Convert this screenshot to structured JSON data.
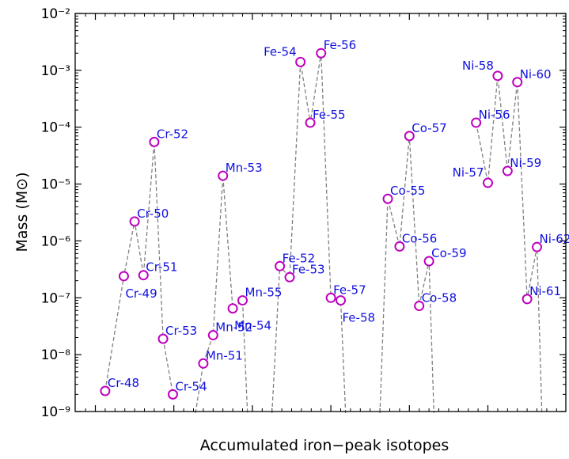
{
  "chart_data": {
    "type": "scatter",
    "title": "",
    "xlabel": "Accumulated iron−peak isotopes",
    "ylabel": "Mass (M⊙)",
    "yscale": "log",
    "ylim": [
      1e-09,
      0.01
    ],
    "y_ticks": [
      {
        "value": 1e-09,
        "label": "10⁻⁹"
      },
      {
        "value": 1e-08,
        "label": "10⁻⁸"
      },
      {
        "value": 1e-07,
        "label": "10⁻⁷"
      },
      {
        "value": 1e-06,
        "label": "10⁻⁶"
      },
      {
        "value": 1e-05,
        "label": "10⁻⁵"
      },
      {
        "value": 0.0001,
        "label": "10⁻⁴"
      },
      {
        "value": 0.001,
        "label": "10⁻³"
      },
      {
        "value": 0.01,
        "label": "10⁻²"
      }
    ],
    "x_tick_indices": [
      0,
      8,
      16,
      24,
      32,
      40
    ],
    "grid": false,
    "marker": {
      "shape": "open-circle",
      "edge_color": "#bf00bf"
    },
    "line": {
      "style": "dashed",
      "color": "#808080"
    },
    "label_color": "#1010e0",
    "groups": [
      {
        "element": "Cr",
        "points": [
          {
            "index": 1,
            "label": "Cr-48",
            "value": 2.3e-09,
            "label_pos": "right"
          },
          {
            "index": 2.9,
            "label": "Cr-49",
            "value": 2.4e-07,
            "label_pos": "below"
          },
          {
            "index": 4,
            "label": "Cr-50",
            "value": 2.2e-06,
            "label_pos": "right"
          },
          {
            "index": 4.9,
            "label": "Cr-51",
            "value": 2.5e-07,
            "label_pos": "right"
          },
          {
            "index": 6,
            "label": "Cr-52",
            "value": 5.5e-05,
            "label_pos": "right"
          },
          {
            "index": 6.9,
            "label": "Cr-53",
            "value": 1.9e-08,
            "label_pos": "right"
          },
          {
            "index": 7.9,
            "label": "Cr-54",
            "value": 2e-09,
            "label_pos": "right"
          }
        ],
        "tail": "none"
      },
      {
        "element": "Mn",
        "points": [
          {
            "index": 11,
            "label": "Mn-51",
            "value": 7e-09,
            "label_pos": "right"
          },
          {
            "index": 12,
            "label": "Mn-52",
            "value": 2.2e-08,
            "label_pos": "right"
          },
          {
            "index": 13,
            "label": "Mn-53",
            "value": 1.4e-05,
            "label_pos": "right"
          },
          {
            "index": 14,
            "label": "Mn-54",
            "value": 6.5e-08,
            "label_pos": "below"
          },
          {
            "index": 15,
            "label": "Mn-55",
            "value": 9e-08,
            "label_pos": "right"
          }
        ],
        "head": "down",
        "tail": "down"
      },
      {
        "element": "Fe",
        "points": [
          {
            "index": 18.8,
            "label": "Fe-52",
            "value": 3.6e-07,
            "label_pos": "right"
          },
          {
            "index": 19.8,
            "label": "Fe-53",
            "value": 2.3e-07,
            "label_pos": "right"
          },
          {
            "index": 20.9,
            "label": "Fe-54",
            "value": 0.0014,
            "label_pos": "left"
          },
          {
            "index": 21.9,
            "label": "Fe-55",
            "value": 0.00012,
            "label_pos": "right"
          },
          {
            "index": 23,
            "label": "Fe-56",
            "value": 0.002,
            "label_pos": "right"
          },
          {
            "index": 24,
            "label": "Fe-57",
            "value": 1e-07,
            "label_pos": "right"
          },
          {
            "index": 25,
            "label": "Fe-58",
            "value": 9e-08,
            "label_pos": "below"
          }
        ],
        "head": "down",
        "tail": "down"
      },
      {
        "element": "Co",
        "points": [
          {
            "index": 29.8,
            "label": "Co-55",
            "value": 5.5e-06,
            "label_pos": "right"
          },
          {
            "index": 31,
            "label": "Co-56",
            "value": 8e-07,
            "label_pos": "right"
          },
          {
            "index": 32,
            "label": "Co-57",
            "value": 7e-05,
            "label_pos": "right"
          },
          {
            "index": 33,
            "label": "Co-58",
            "value": 7.2e-08,
            "label_pos": "right"
          },
          {
            "index": 34,
            "label": "Co-59",
            "value": 4.4e-07,
            "label_pos": "right"
          }
        ],
        "head": "down",
        "tail": "down"
      },
      {
        "element": "Ni",
        "points": [
          {
            "index": 38.8,
            "label": "Ni-56",
            "value": 0.00012,
            "label_pos": "right"
          },
          {
            "index": 40,
            "label": "Ni-57",
            "value": 1.05e-05,
            "label_pos": "left"
          },
          {
            "index": 41,
            "label": "Ni-58",
            "value": 0.0008,
            "label_pos": "left"
          },
          {
            "index": 42,
            "label": "Ni-59",
            "value": 1.7e-05,
            "label_pos": "right"
          },
          {
            "index": 43,
            "label": "Ni-60",
            "value": 0.00062,
            "label_pos": "right"
          },
          {
            "index": 44,
            "label": "Ni-61",
            "value": 9.5e-08,
            "label_pos": "right"
          },
          {
            "index": 45,
            "label": "Ni-62",
            "value": 7.8e-07,
            "label_pos": "right"
          }
        ],
        "tail": "down"
      }
    ]
  }
}
